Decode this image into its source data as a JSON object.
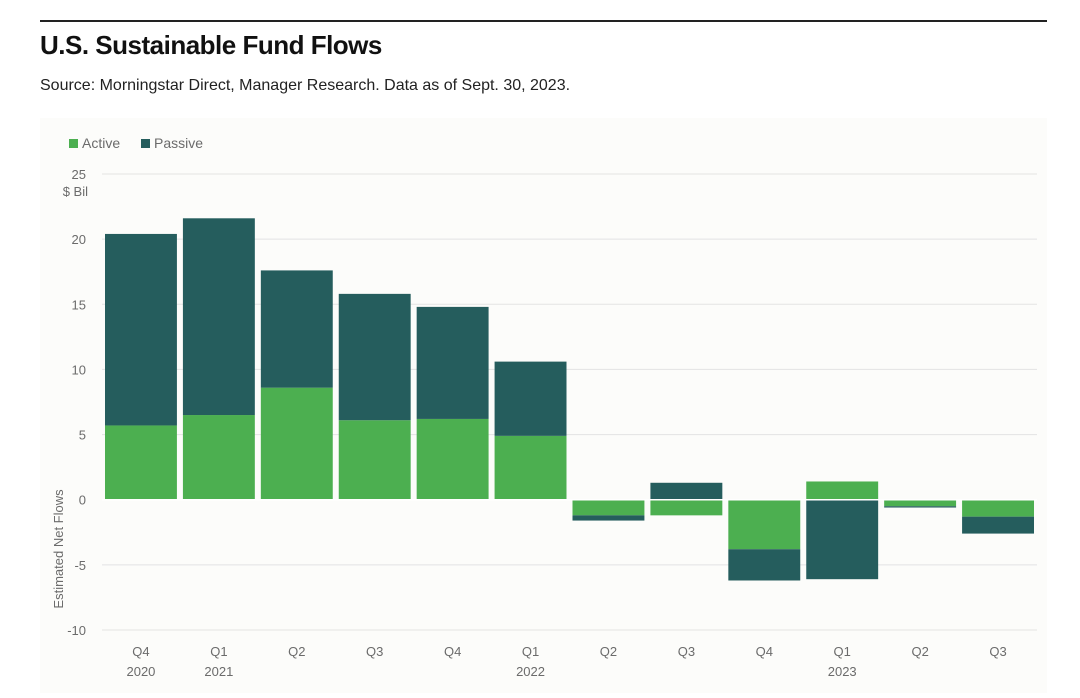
{
  "header": {
    "title": "U.S. Sustainable Fund Flows",
    "subtitle": "Source: Morningstar Direct, Manager Research. Data as of Sept. 30, 2023."
  },
  "colors": {
    "active": "#4caf50",
    "passive": "#255d5d",
    "grid": "#e3e3e3",
    "zero_line": "#ffffff",
    "axis_text": "#6b6b6b"
  },
  "chart_data": {
    "type": "bar",
    "stacked": true,
    "categories": [
      "Q4",
      "Q1",
      "Q2",
      "Q3",
      "Q4",
      "Q1",
      "Q2",
      "Q3",
      "Q4",
      "Q1",
      "Q2",
      "Q3"
    ],
    "year_labels": [
      "2020",
      "2021",
      "",
      "",
      "",
      "2022",
      "",
      "",
      "",
      "2023",
      "",
      ""
    ],
    "series": [
      {
        "name": "Active",
        "values": [
          5.7,
          6.5,
          8.6,
          6.1,
          6.2,
          4.9,
          -1.2,
          -1.2,
          -3.8,
          1.4,
          -0.5,
          -1.3
        ]
      },
      {
        "name": "Passive",
        "values": [
          14.7,
          15.1,
          9.0,
          9.7,
          8.6,
          5.7,
          -0.4,
          1.3,
          -2.4,
          -6.1,
          -0.1,
          -1.3
        ]
      }
    ],
    "ylabel": "Estimated Net Flows",
    "yunit": "$ Bil",
    "ylim": [
      -10,
      25
    ],
    "yticks": [
      -10,
      -5,
      0,
      5,
      10,
      15,
      20,
      25
    ],
    "legend_position": "top-left",
    "grid": true
  }
}
